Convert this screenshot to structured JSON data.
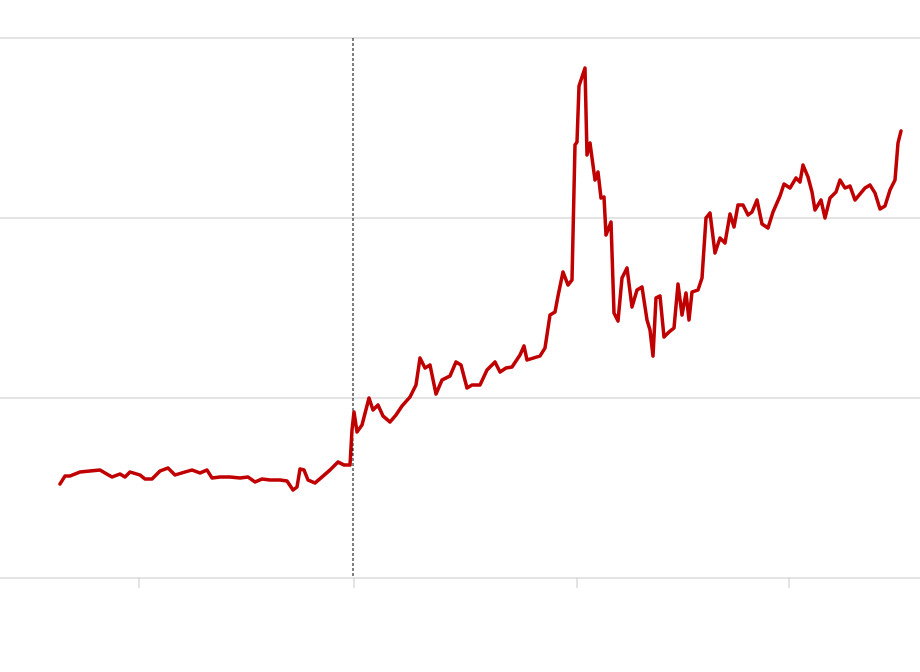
{
  "chart_data": {
    "type": "line",
    "xlim": [
      0,
      920
    ],
    "xticks": [
      139,
      354,
      577,
      789
    ],
    "ylim": [
      0,
      540
    ],
    "yticks": [
      0,
      180,
      360,
      540
    ],
    "grid": true,
    "vline_x": 353,
    "series": [
      {
        "color": "#c00000",
        "x": [
          60,
          65,
          70,
          80,
          90,
          100,
          105,
          112,
          120,
          125,
          130,
          140,
          145,
          152,
          160,
          168,
          175,
          185,
          192,
          200,
          207,
          212,
          220,
          230,
          240,
          248,
          255,
          262,
          270,
          280,
          287,
          293,
          297,
          300,
          304,
          308,
          315,
          322,
          330,
          338,
          344,
          350,
          352,
          354,
          357,
          362,
          369,
          373,
          378,
          383,
          390,
          396,
          402,
          410,
          416,
          420,
          425,
          430,
          436,
          442,
          450,
          456,
          461,
          467,
          472,
          480,
          487,
          495,
          500,
          506,
          512,
          520,
          524,
          527,
          540,
          545,
          550,
          555,
          558,
          563,
          568,
          572,
          575,
          577,
          579,
          585,
          587,
          590,
          595,
          598,
          601,
          604,
          606,
          611,
          614,
          618,
          622,
          627,
          632,
          637,
          642,
          647,
          650,
          653,
          656,
          660,
          664,
          669,
          674,
          678,
          682,
          686,
          689,
          692,
          698,
          702,
          706,
          710,
          715,
          720,
          725,
          730,
          734,
          738,
          743,
          748,
          752,
          757,
          762,
          768,
          773,
          780,
          784,
          790,
          796,
          800,
          803,
          808,
          812,
          815,
          821,
          825,
          830,
          836,
          840,
          845,
          850,
          855,
          860,
          865,
          870,
          875,
          880,
          885,
          890,
          895,
          898,
          901
        ],
        "values": [
          94,
          102,
          102,
          106,
          107,
          108,
          105,
          101,
          104,
          101,
          106,
          103,
          99,
          99,
          107,
          110,
          103,
          106,
          108,
          105,
          108,
          100,
          101,
          101,
          100,
          101,
          96,
          99,
          98,
          98,
          97,
          88,
          91,
          109,
          108,
          98,
          95,
          101,
          108,
          116,
          113,
          113,
          148,
          166,
          146,
          153,
          180,
          168,
          173,
          162,
          156,
          163,
          172,
          181,
          193,
          220,
          210,
          213,
          184,
          198,
          202,
          216,
          213,
          190,
          193,
          193,
          208,
          216,
          206,
          210,
          211,
          223,
          232,
          218,
          222,
          230,
          263,
          266,
          282,
          306,
          293,
          298,
          433,
          436,
          492,
          510,
          423,
          435,
          398,
          406,
          380,
          381,
          343,
          356,
          265,
          257,
          300,
          310,
          271,
          288,
          291,
          258,
          248,
          222,
          280,
          282,
          241,
          246,
          250,
          294,
          263,
          285,
          258,
          286,
          288,
          300,
          360,
          365,
          325,
          340,
          335,
          364,
          351,
          373,
          373,
          363,
          366,
          378,
          354,
          350,
          366,
          382,
          394,
          390,
          400,
          396,
          413,
          401,
          386,
          368,
          378,
          360,
          380,
          386,
          398,
          390,
          392,
          378,
          384,
          390,
          393,
          385,
          369,
          372,
          388,
          398,
          435,
          447
        ]
      }
    ]
  }
}
